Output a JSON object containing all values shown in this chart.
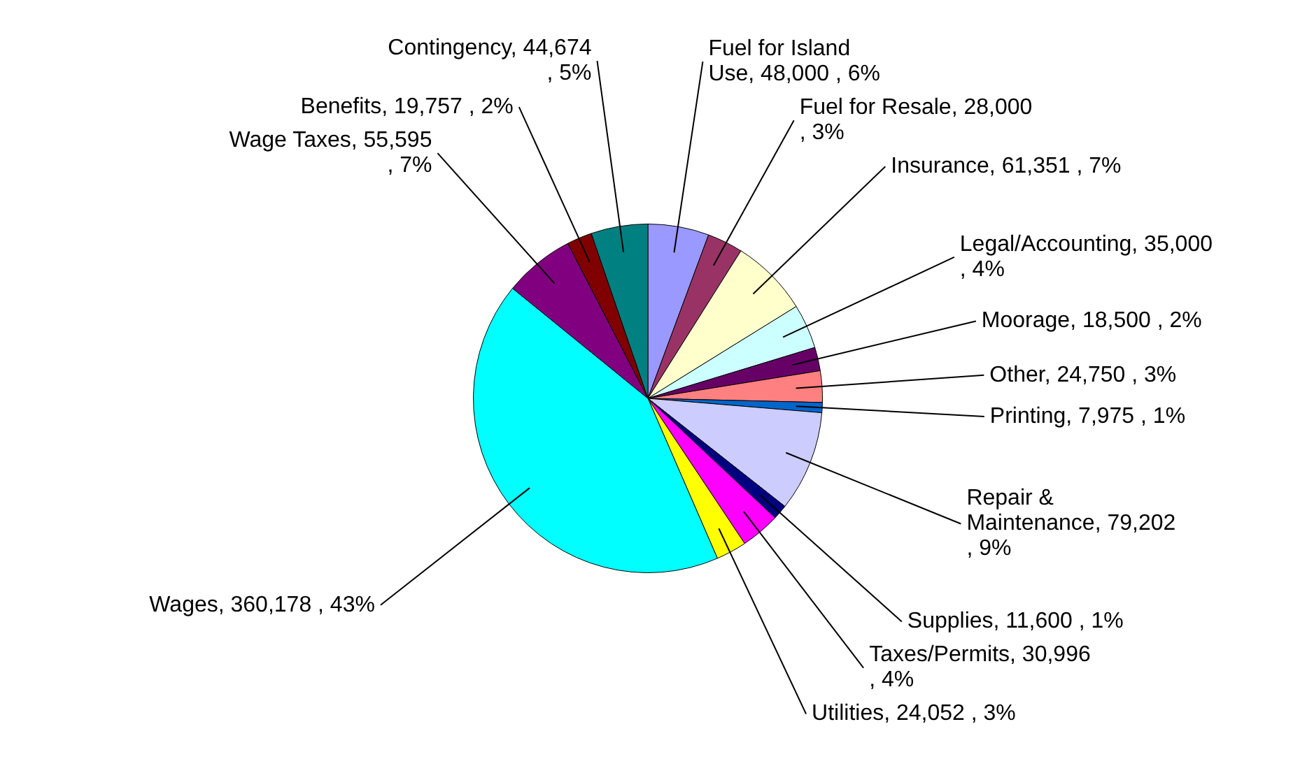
{
  "chart_data": {
    "type": "pie",
    "categories": [
      "Fuel for Island Use",
      "Fuel for Resale",
      "Insurance",
      "Legal/Accounting",
      "Moorage",
      "Other",
      "Printing",
      "Repair & Maintenance",
      "Supplies",
      "Taxes/Permits",
      "Utilities",
      "Wages",
      "Wage Taxes",
      "Benefits",
      "Contingency"
    ],
    "values": [
      48000,
      28000,
      61351,
      35000,
      18500,
      24750,
      7975,
      79202,
      11600,
      30996,
      24052,
      360178,
      55595,
      19757,
      44674
    ],
    "value_labels": [
      "48,000 , 6%",
      "28,000 , 3%",
      "61,351 , 7%",
      "35,000 , 4%",
      "18,500 , 2%",
      "24,750 , 3%",
      "7,975 , 1%",
      "79,202 , 9%",
      "11,600 , 1%",
      "30,996 , 4%",
      "24,052 , 3%",
      "360,178 , 43%",
      "55,595 , 7%",
      "19,757 , 2%",
      "44,674 , 5%"
    ],
    "colors": [
      "#9999ff",
      "#993366",
      "#ffffcc",
      "#ccffff",
      "#660066",
      "#ff8080",
      "#0066cc",
      "#ccccff",
      "#000080",
      "#ff00ff",
      "#ffff00",
      "#00ffff",
      "#800080",
      "#800000",
      "#008080"
    ],
    "legend": false
  }
}
